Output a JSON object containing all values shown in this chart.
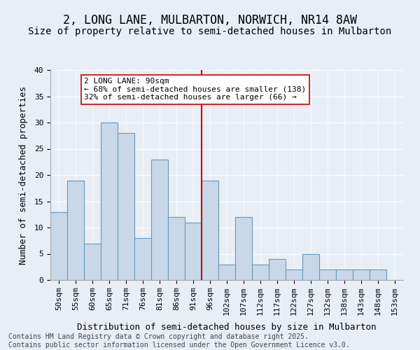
{
  "title": "2, LONG LANE, MULBARTON, NORWICH, NR14 8AW",
  "subtitle": "Size of property relative to semi-detached houses in Mulbarton",
  "xlabel": "Distribution of semi-detached houses by size in Mulbarton",
  "ylabel": "Number of semi-detached properties",
  "categories": [
    "50sqm",
    "55sqm",
    "60sqm",
    "65sqm",
    "71sqm",
    "76sqm",
    "81sqm",
    "86sqm",
    "91sqm",
    "96sqm",
    "102sqm",
    "107sqm",
    "112sqm",
    "117sqm",
    "122sqm",
    "127sqm",
    "132sqm",
    "138sqm",
    "143sqm",
    "148sqm",
    "153sqm"
  ],
  "values": [
    13,
    19,
    7,
    30,
    28,
    8,
    23,
    12,
    11,
    19,
    3,
    12,
    3,
    4,
    2,
    5,
    2,
    2,
    2,
    2,
    0
  ],
  "bar_color": "#c8d8e8",
  "bar_edge_color": "#6699bb",
  "vline_x": 8.5,
  "vline_color": "#cc0000",
  "annotation_text": "2 LONG LANE: 90sqm\n← 68% of semi-detached houses are smaller (138)\n32% of semi-detached houses are larger (66) →",
  "annotation_box_color": "#ffffff",
  "annotation_border_color": "#cc0000",
  "ylim": [
    0,
    40
  ],
  "yticks": [
    0,
    5,
    10,
    15,
    20,
    25,
    30,
    35,
    40
  ],
  "background_color": "#e8eef5",
  "plot_background_color": "#e8eef5",
  "footer": "Contains HM Land Registry data © Crown copyright and database right 2025.\nContains public sector information licensed under the Open Government Licence v3.0.",
  "title_fontsize": 12,
  "subtitle_fontsize": 10,
  "xlabel_fontsize": 9,
  "ylabel_fontsize": 9,
  "tick_fontsize": 8,
  "annotation_fontsize": 8,
  "footer_fontsize": 7
}
